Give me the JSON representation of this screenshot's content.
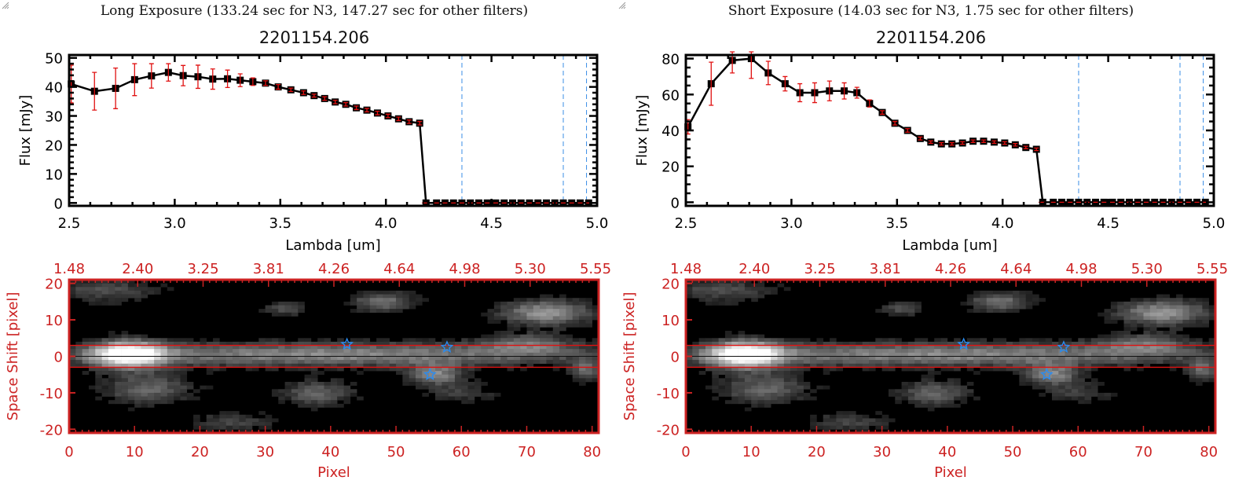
{
  "colors": {
    "axis": "#000000",
    "line": "#000000",
    "err": "#e01010",
    "red_axis": "#cc2222",
    "blue": "#3a8ee6",
    "star": "#2a8cf0"
  },
  "chart_data": [
    {
      "type": "line",
      "title": "Long Exposure (133.24 sec for N3, 147.27 sec for other filters)",
      "subtitle": "2201154.206",
      "xlabel": "Lambda [um]",
      "ylabel": "Flux [mJy]",
      "xlim": [
        2.5,
        5.0
      ],
      "ylim": [
        -1,
        51
      ],
      "xticks": [
        "2.5",
        "3.0",
        "3.5",
        "4.0",
        "4.5",
        "5.0"
      ],
      "xtick_values": [
        2.5,
        3.0,
        3.5,
        4.0,
        4.5,
        5.0
      ],
      "yticks": [
        "0",
        "10",
        "20",
        "30",
        "40",
        "50"
      ],
      "ytick_values": [
        0,
        10,
        20,
        30,
        40,
        50
      ],
      "vlines": [
        4.36,
        4.84,
        4.95
      ],
      "series": [
        {
          "name": "flux",
          "x": [
            2.51,
            2.62,
            2.72,
            2.81,
            2.89,
            2.97,
            3.04,
            3.11,
            3.18,
            3.25,
            3.31,
            3.37,
            3.43,
            3.49,
            3.55,
            3.61,
            3.66,
            3.71,
            3.76,
            3.81,
            3.86,
            3.91,
            3.96,
            4.01,
            4.06,
            4.11,
            4.16,
            4.19,
            4.24,
            4.28,
            4.32,
            4.36,
            4.4,
            4.44,
            4.48,
            4.52,
            4.56,
            4.6,
            4.64,
            4.68,
            4.72,
            4.76,
            4.8,
            4.84,
            4.88,
            4.92,
            4.96
          ],
          "y": [
            41,
            38.5,
            39.5,
            42.5,
            43.8,
            45,
            43.9,
            43.5,
            42.7,
            42.8,
            42.3,
            41.8,
            41.3,
            40,
            39,
            38,
            37,
            36,
            34.8,
            34,
            32.8,
            32,
            31,
            30,
            29,
            28,
            27.5,
            0,
            0,
            0,
            0,
            0,
            0,
            0,
            0,
            0,
            0,
            0,
            0,
            0,
            0,
            0,
            0,
            0,
            0,
            0,
            0
          ],
          "err": [
            6.5,
            6.5,
            7,
            5.5,
            4.2,
            3,
            3.5,
            4,
            3.5,
            3,
            2.2,
            1.3,
            0.8,
            0.8,
            0.6,
            0.6,
            0.5,
            0.6,
            0.6,
            0.6,
            0.6,
            0.6,
            0.6,
            0.6,
            0.6,
            0.6,
            0.6,
            0,
            0,
            0,
            0,
            0,
            0,
            0,
            0,
            0,
            0,
            0,
            0,
            0,
            0,
            0,
            0,
            0,
            0,
            0,
            0
          ]
        }
      ]
    },
    {
      "type": "line",
      "title": "Short Exposure (14.03 sec for N3, 1.75 sec for other filters)",
      "subtitle": "2201154.206",
      "xlabel": "Lambda [um]",
      "ylabel": "Flux [mJy]",
      "xlim": [
        2.5,
        5.0
      ],
      "ylim": [
        -2,
        82
      ],
      "xticks": [
        "2.5",
        "3.0",
        "3.5",
        "4.0",
        "4.5",
        "5.0"
      ],
      "xtick_values": [
        2.5,
        3.0,
        3.5,
        4.0,
        4.5,
        5.0
      ],
      "yticks": [
        "0",
        "20",
        "40",
        "60",
        "80"
      ],
      "ytick_values": [
        0,
        20,
        40,
        60,
        80
      ],
      "vlines": [
        4.36,
        4.84,
        4.95
      ],
      "series": [
        {
          "name": "flux",
          "x": [
            2.51,
            2.62,
            2.72,
            2.81,
            2.89,
            2.97,
            3.04,
            3.11,
            3.18,
            3.25,
            3.31,
            3.37,
            3.43,
            3.49,
            3.55,
            3.61,
            3.66,
            3.71,
            3.76,
            3.81,
            3.86,
            3.91,
            3.96,
            4.01,
            4.06,
            4.11,
            4.16,
            4.19,
            4.24,
            4.28,
            4.32,
            4.36,
            4.4,
            4.44,
            4.48,
            4.52,
            4.56,
            4.6,
            4.64,
            4.68,
            4.72,
            4.76,
            4.8,
            4.84,
            4.88,
            4.92,
            4.96
          ],
          "y": [
            42,
            66,
            79,
            80,
            72,
            66,
            61,
            61,
            62,
            62,
            61,
            55,
            50,
            44,
            40,
            35.5,
            33.5,
            32.5,
            32.5,
            33,
            34,
            34,
            33.5,
            33,
            32,
            30.5,
            29.5,
            0,
            0,
            0,
            0,
            0,
            0,
            0,
            0,
            0,
            0,
            0,
            0,
            0,
            0,
            0,
            0,
            0,
            0,
            0,
            0
          ],
          "err": [
            4,
            12,
            7,
            11,
            6.5,
            4,
            5,
            5.5,
            5.5,
            4.5,
            3,
            2,
            1,
            1,
            1,
            0.8,
            0.7,
            0.7,
            0.7,
            0.7,
            0.7,
            0.7,
            0.7,
            0.7,
            0.7,
            0.7,
            0.7,
            0,
            0,
            0,
            0,
            0,
            0,
            0,
            0,
            0,
            0,
            0,
            0,
            0,
            0,
            0,
            0,
            0,
            0,
            0,
            0
          ]
        }
      ]
    },
    {
      "type": "heatmap",
      "xlabel": "Pixel",
      "ylabel": "Space Shift [pixel]",
      "xlim": [
        0,
        81
      ],
      "ylim": [
        -21,
        21
      ],
      "xticks": [
        "0",
        "10",
        "20",
        "30",
        "40",
        "50",
        "60",
        "70",
        "80"
      ],
      "xtick_values": [
        0,
        10,
        20,
        30,
        40,
        50,
        60,
        70,
        80
      ],
      "yticks": [
        "-20",
        "-10",
        "0",
        "10",
        "20"
      ],
      "ytick_values": [
        -20,
        -10,
        0,
        10,
        20
      ],
      "top_ticks": [
        "1.48",
        "2.40",
        "3.25",
        "3.81",
        "4.26",
        "4.64",
        "4.98",
        "5.30",
        "5.55"
      ],
      "aperture_lines": [
        3,
        -3
      ],
      "center_line": 0,
      "stars": [
        {
          "px": 42.5,
          "y": 3.3
        },
        {
          "px": 57.8,
          "y": 2.5
        },
        {
          "px": 55.2,
          "y": -5
        }
      ],
      "sources": [
        {
          "px": 9,
          "y": 0.5,
          "sx": 4,
          "sy": 2.6,
          "a": 1.0
        },
        {
          "px": 40,
          "y": 0.5,
          "sx": 30,
          "sy": 2.4,
          "a": 0.55
        },
        {
          "px": 12,
          "y": -9,
          "sx": 5,
          "sy": 3,
          "a": 0.4
        },
        {
          "px": 38,
          "y": -10,
          "sx": 4,
          "sy": 2.5,
          "a": 0.4
        },
        {
          "px": 56,
          "y": -5,
          "sx": 3,
          "sy": 2,
          "a": 0.5
        },
        {
          "px": 73,
          "y": 12,
          "sx": 5,
          "sy": 2.5,
          "a": 0.6
        },
        {
          "px": 48,
          "y": 15,
          "sx": 3.5,
          "sy": 2,
          "a": 0.45
        },
        {
          "px": 33,
          "y": 13,
          "sx": 2.5,
          "sy": 1.5,
          "a": 0.3
        },
        {
          "px": 70,
          "y": 3.5,
          "sx": 5,
          "sy": 2,
          "a": 0.35
        },
        {
          "px": 5,
          "y": 18,
          "sx": 6,
          "sy": 2.5,
          "a": 0.3
        },
        {
          "px": 79,
          "y": -4,
          "sx": 1.5,
          "sy": 2,
          "a": 0.4
        },
        {
          "px": 60,
          "y": -10,
          "sx": 4,
          "sy": 2,
          "a": 0.25
        },
        {
          "px": 25,
          "y": -18,
          "sx": 5,
          "sy": 2,
          "a": 0.25
        }
      ]
    }
  ]
}
